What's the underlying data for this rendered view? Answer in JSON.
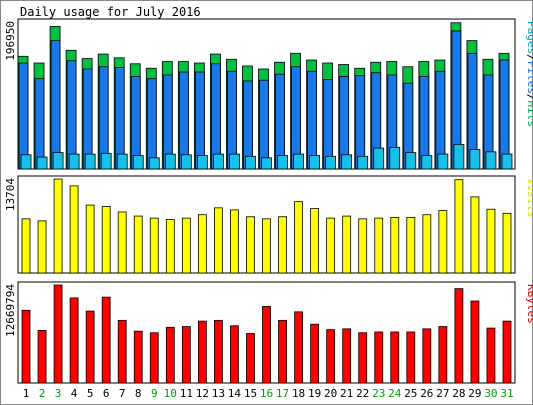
{
  "chart_data": [
    {
      "type": "bar",
      "title": "Daily usage for July 2016",
      "ylabel_max": "196950",
      "legend": [
        {
          "label": "Pages",
          "color": "#00a0c0"
        },
        {
          "label": "Files",
          "color": "#1070e0"
        },
        {
          "label": "Hits",
          "color": "#00b050"
        }
      ],
      "legend_separator": "/",
      "categories": [
        "1",
        "2",
        "3",
        "4",
        "5",
        "6",
        "7",
        "8",
        "9",
        "10",
        "11",
        "12",
        "13",
        "14",
        "15",
        "16",
        "17",
        "18",
        "19",
        "20",
        "21",
        "22",
        "23",
        "24",
        "25",
        "26",
        "27",
        "28",
        "29",
        "30",
        "31"
      ],
      "weekend_days": [
        "2",
        "3",
        "9",
        "10",
        "16",
        "17",
        "23",
        "24",
        "30",
        "31"
      ],
      "ymax": 196950,
      "series": [
        {
          "name": "Hits",
          "color": "#00c040",
          "values": [
            151000,
            142000,
            191000,
            159000,
            148000,
            154000,
            149000,
            141000,
            135000,
            144000,
            144000,
            142000,
            154000,
            147000,
            138000,
            134000,
            143000,
            155000,
            146000,
            142000,
            140000,
            135000,
            143000,
            144000,
            137000,
            144000,
            146000,
            196000,
            172000,
            147000,
            155000
          ]
        },
        {
          "name": "Files",
          "color": "#1878e8",
          "values": [
            142000,
            121000,
            172000,
            145000,
            134000,
            137000,
            136000,
            124000,
            121000,
            126000,
            130000,
            130000,
            141000,
            131000,
            118000,
            119000,
            127000,
            137000,
            131000,
            120000,
            124000,
            125000,
            129000,
            126000,
            115000,
            124000,
            131000,
            185000,
            155000,
            126000,
            146000
          ]
        },
        {
          "name": "Pages",
          "color": "#18c0e8",
          "values": [
            19000,
            16000,
            22000,
            20000,
            20000,
            21000,
            20000,
            18000,
            15000,
            20000,
            19000,
            18000,
            20000,
            20000,
            17000,
            15000,
            18000,
            20000,
            18000,
            17000,
            19000,
            17000,
            28000,
            29000,
            22000,
            18000,
            20000,
            33000,
            26000,
            23000,
            20000
          ]
        }
      ]
    },
    {
      "type": "bar",
      "ylabel_max": "13704",
      "legend": [
        {
          "label": "Visits",
          "color": "#e0e000"
        }
      ],
      "categories": [
        "1",
        "2",
        "3",
        "4",
        "5",
        "6",
        "7",
        "8",
        "9",
        "10",
        "11",
        "12",
        "13",
        "14",
        "15",
        "16",
        "17",
        "18",
        "19",
        "20",
        "21",
        "22",
        "23",
        "24",
        "25",
        "26",
        "27",
        "28",
        "29",
        "30",
        "31"
      ],
      "ymax": 13704,
      "series": [
        {
          "name": "Visits",
          "color": "#ffff00",
          "values": [
            7900,
            7600,
            13700,
            12700,
            9900,
            9700,
            8900,
            8300,
            8000,
            7800,
            8000,
            8500,
            9500,
            9200,
            8200,
            7900,
            8200,
            10400,
            9400,
            8000,
            8300,
            7900,
            8000,
            8100,
            8100,
            8500,
            9100,
            13600,
            11100,
            9300,
            8700
          ]
        }
      ]
    },
    {
      "type": "bar",
      "ylabel_max": "12669794",
      "legend": [
        {
          "label": "KBytes",
          "color": "#e00000"
        }
      ],
      "categories": [
        "1",
        "2",
        "3",
        "4",
        "5",
        "6",
        "7",
        "8",
        "9",
        "10",
        "11",
        "12",
        "13",
        "14",
        "15",
        "16",
        "17",
        "18",
        "19",
        "20",
        "21",
        "22",
        "23",
        "24",
        "25",
        "26",
        "27",
        "28",
        "29",
        "30",
        "31"
      ],
      "ymax": 12669794,
      "series": [
        {
          "name": "KBytes",
          "color": "#ff0000",
          "values": [
            9400000,
            6800000,
            12670000,
            11000000,
            9300000,
            11100000,
            8100000,
            6700000,
            6500000,
            7200000,
            7300000,
            8000000,
            8100000,
            7400000,
            6400000,
            9900000,
            8100000,
            9200000,
            7600000,
            6900000,
            7000000,
            6500000,
            6600000,
            6600000,
            6600000,
            7000000,
            7300000,
            12200000,
            10600000,
            7100000,
            8000000
          ]
        }
      ]
    }
  ]
}
